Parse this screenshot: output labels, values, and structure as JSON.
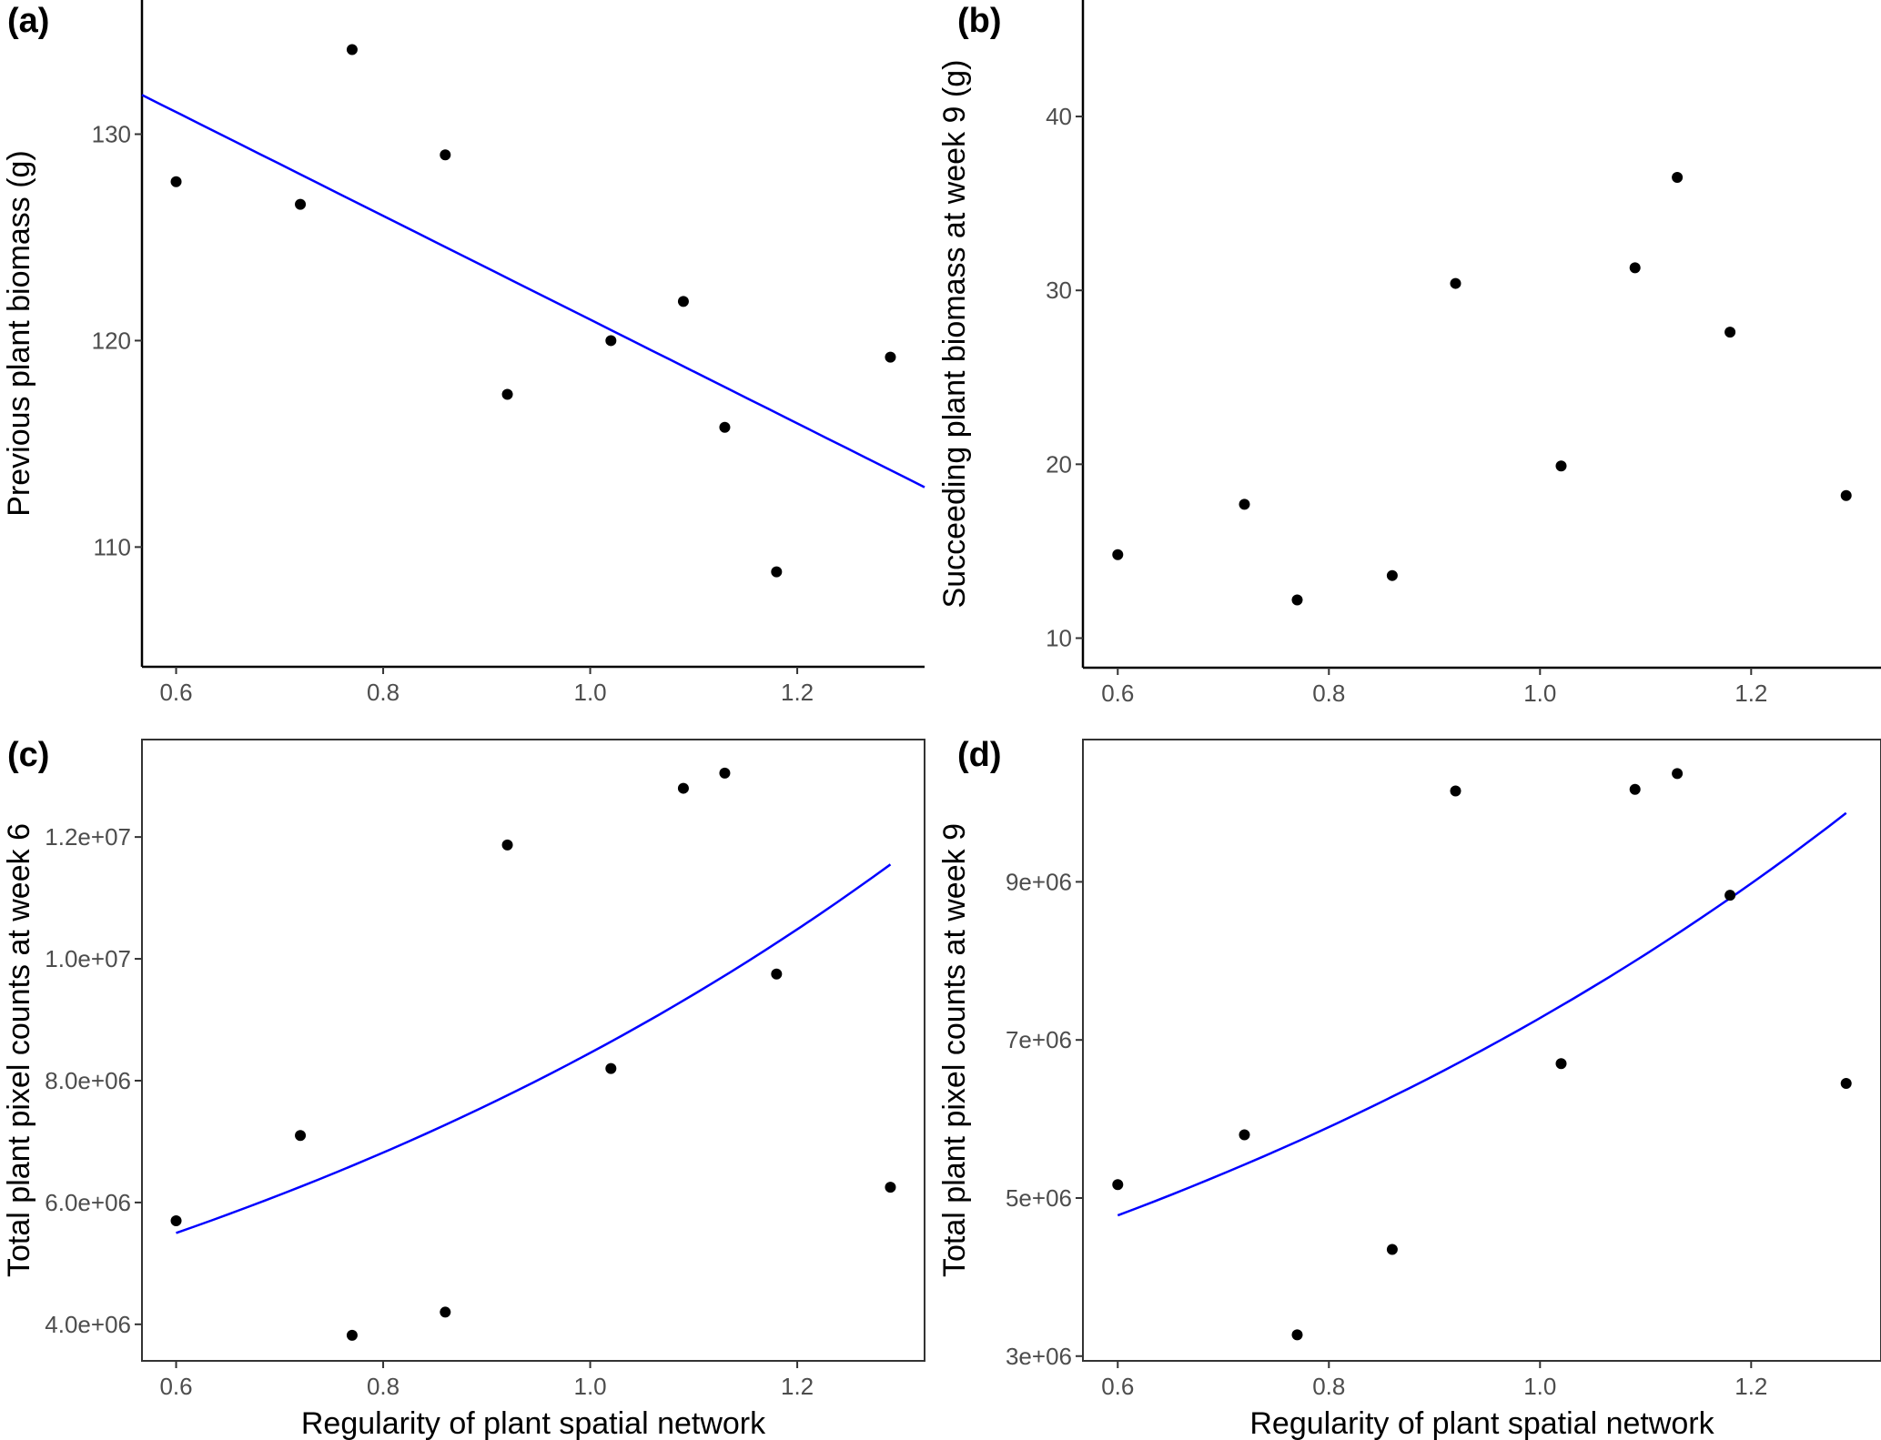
{
  "chart_data": [
    {
      "panel": "(a)",
      "type": "scatter",
      "xlabel": "",
      "ylabel": "Previous plant biomass (g)",
      "xlim": [
        0.567,
        1.323
      ],
      "ylim": [
        104.2,
        136.5
      ],
      "xticks": [
        "0.6",
        "0.8",
        "1.0",
        "1.2"
      ],
      "xtick_values": [
        0.6,
        0.8,
        1.0,
        1.2
      ],
      "yticks": [
        "110",
        "120",
        "130"
      ],
      "ytick_values": [
        110,
        120,
        130
      ],
      "frame": "axes",
      "x": [
        0.6,
        0.72,
        0.77,
        0.86,
        0.92,
        1.02,
        1.09,
        1.13,
        1.18,
        1.29
      ],
      "y": [
        127.7,
        126.6,
        134.1,
        129.0,
        117.4,
        120.0,
        121.9,
        115.8,
        108.8,
        119.2
      ],
      "fit": {
        "kind": "linear",
        "x": [
          0.567,
          1.323
        ],
        "y": [
          131.9,
          112.9
        ],
        "color": "#0000ff"
      }
    },
    {
      "panel": "(b)",
      "type": "scatter",
      "xlabel": "",
      "ylabel": "Succeeding plant biomass at week 9 (g)",
      "xlim": [
        0.567,
        1.323
      ],
      "ylim": [
        8.3,
        46.7
      ],
      "xticks": [
        "0.6",
        "0.8",
        "1.0",
        "1.2"
      ],
      "xtick_values": [
        0.6,
        0.8,
        1.0,
        1.2
      ],
      "yticks": [
        "10",
        "20",
        "30",
        "40"
      ],
      "ytick_values": [
        10,
        20,
        30,
        40
      ],
      "frame": "axes",
      "x": [
        0.6,
        0.72,
        0.77,
        0.86,
        0.92,
        1.02,
        1.09,
        1.13,
        1.18,
        1.29
      ],
      "y": [
        14.8,
        17.7,
        12.2,
        13.6,
        30.4,
        19.9,
        31.3,
        36.5,
        27.6,
        18.2
      ]
    },
    {
      "panel": "(c)",
      "type": "scatter",
      "xlabel": "Regularity of plant spatial network",
      "ylabel": "Total plant pixel counts at week 6",
      "xlim": [
        0.567,
        1.323
      ],
      "ylim": [
        3400000,
        13600000
      ],
      "xticks": [
        "0.6",
        "0.8",
        "1.0",
        "1.2"
      ],
      "xtick_values": [
        0.6,
        0.8,
        1.0,
        1.2
      ],
      "yticks": [
        "4.0e+06",
        "6.0e+06",
        "8.0e+06",
        "1.0e+07",
        "1.2e+07"
      ],
      "ytick_values": [
        4000000,
        6000000,
        8000000,
        10000000,
        12000000
      ],
      "frame": "box",
      "x": [
        0.6,
        0.72,
        0.77,
        0.86,
        0.92,
        1.02,
        1.09,
        1.13,
        1.18,
        1.29
      ],
      "y": [
        5700000,
        7100000,
        3820000,
        4200000,
        11870000,
        8200000,
        12800000,
        13050000,
        9750000,
        6250000
      ],
      "fit": {
        "kind": "exponential",
        "x": [
          0.6,
          1.29
        ],
        "y": [
          5500000,
          11550000
        ],
        "color": "#0000ff"
      }
    },
    {
      "panel": "(d)",
      "type": "scatter",
      "xlabel": "Regularity of plant spatial network",
      "ylabel": "Total plant pixel counts at week 9",
      "xlim": [
        0.567,
        1.323
      ],
      "ylim": [
        2940000,
        10800000
      ],
      "xticks": [
        "0.6",
        "0.8",
        "1.0",
        "1.2"
      ],
      "xtick_values": [
        0.6,
        0.8,
        1.0,
        1.2
      ],
      "yticks": [
        "3e+06",
        "5e+06",
        "7e+06",
        "9e+06"
      ],
      "ytick_values": [
        3000000,
        5000000,
        7000000,
        9000000
      ],
      "frame": "box",
      "x": [
        0.6,
        0.72,
        0.77,
        0.86,
        0.92,
        1.02,
        1.09,
        1.13,
        1.18,
        1.29
      ],
      "y": [
        5170000,
        5800000,
        3270000,
        4350000,
        10150000,
        6700000,
        10170000,
        10370000,
        8830000,
        6450000
      ],
      "fit": {
        "kind": "exponential",
        "x": [
          0.6,
          1.29
        ],
        "y": [
          4780000,
          9870000
        ],
        "color": "#0000ff"
      }
    }
  ],
  "colors": {
    "point": "#000000",
    "fit": "#0000ff",
    "tick_text": "#4d4d4d"
  }
}
